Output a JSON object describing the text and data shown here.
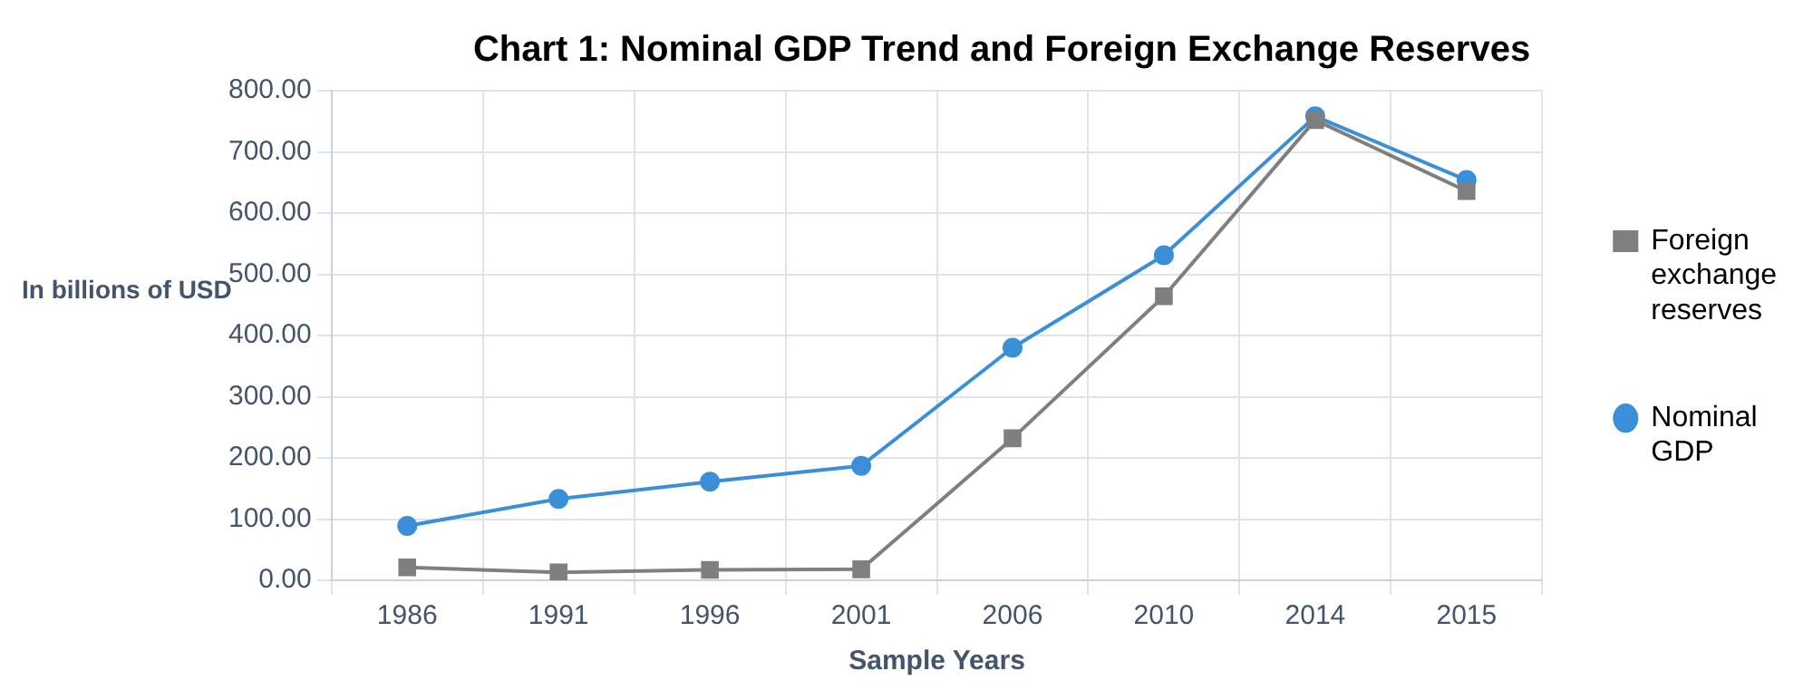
{
  "chart_data": {
    "type": "line",
    "title": "Chart 1: Nominal GDP Trend and Foreign Exchange Reserves",
    "xlabel": "Sample Years",
    "ylabel": "In billions of USD",
    "categories": [
      "1986",
      "1991",
      "1996",
      "2001",
      "2006",
      "2010",
      "2014",
      "2015"
    ],
    "series": [
      {
        "name": "Nominal GDP",
        "color": "#3b8fd9",
        "marker": "circle",
        "values": [
          89,
          133,
          161,
          187,
          380,
          531,
          758,
          654
        ]
      },
      {
        "name": "Foreign exchange reserves",
        "color": "#7f7f7f",
        "marker": "square",
        "values": [
          21,
          13,
          17,
          18,
          232,
          464,
          752,
          636
        ]
      }
    ],
    "ylim": [
      0,
      800
    ],
    "yticks": [
      {
        "value": 0,
        "label": "0.00"
      },
      {
        "value": 100,
        "label": "100.00"
      },
      {
        "value": 200,
        "label": "200.00"
      },
      {
        "value": 300,
        "label": "300.00"
      },
      {
        "value": 400,
        "label": "400.00"
      },
      {
        "value": 500,
        "label": "500.00"
      },
      {
        "value": 600,
        "label": "600.00"
      },
      {
        "value": 700,
        "label": "700.00"
      },
      {
        "value": 800,
        "label": "800.00"
      }
    ],
    "grid": true,
    "legend": "right",
    "line_style": "solid"
  }
}
